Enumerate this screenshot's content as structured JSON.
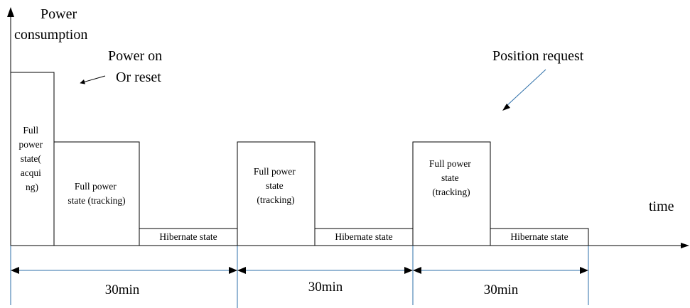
{
  "axis": {
    "y_label_line1": "Power",
    "y_label_line2": "consumption",
    "x_label": "time"
  },
  "annotations": {
    "power_on_line1": "Power on",
    "power_on_line2": "Or reset",
    "position_request": "Position request"
  },
  "states": {
    "acquiring": [
      "Full",
      "power",
      "state(",
      "acqui",
      "ng)"
    ],
    "tracking_1": [
      "Full power",
      "state (tracking)"
    ],
    "hibernate_1": "Hibernate state",
    "tracking_2": [
      "Full power",
      "state",
      "(tracking)"
    ],
    "hibernate_2": "Hibernate state",
    "tracking_3": [
      "Full power",
      "state",
      "(tracking)"
    ],
    "hibernate_3": "Hibernate state"
  },
  "intervals": [
    "30min",
    "30min",
    "30min"
  ],
  "colors": {
    "interval_lines": "#2e6fa8",
    "outline": "#000000"
  }
}
